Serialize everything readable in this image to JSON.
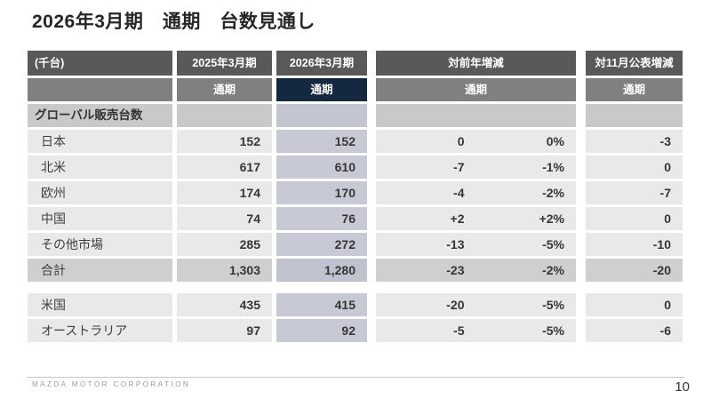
{
  "slide": {
    "title": "2026年3月期　通期　台数見通し",
    "footer": "MAZDA MOTOR CORPORATION",
    "page_number": "10"
  },
  "table": {
    "unit_label": "(千台)",
    "col_headers": [
      "2025年3月期",
      "2026年3月期",
      "対前年増減",
      "対11月公表増減"
    ],
    "subheader": "通期",
    "section_label": "グローバル販売台数",
    "rows": [
      {
        "label": "日本",
        "fy2025": "152",
        "fy2026": "152",
        "yoy": "0",
        "yoy_pct": "0%",
        "vs_nov": "-3"
      },
      {
        "label": "北米",
        "fy2025": "617",
        "fy2026": "610",
        "yoy": "-7",
        "yoy_pct": "-1%",
        "vs_nov": "0"
      },
      {
        "label": "欧州",
        "fy2025": "174",
        "fy2026": "170",
        "yoy": "-4",
        "yoy_pct": "-2%",
        "vs_nov": "-7"
      },
      {
        "label": "中国",
        "fy2025": "74",
        "fy2026": "76",
        "yoy": "+2",
        "yoy_pct": "+2%",
        "vs_nov": "0"
      },
      {
        "label": "その他市場",
        "fy2025": "285",
        "fy2026": "272",
        "yoy": "-13",
        "yoy_pct": "-5%",
        "vs_nov": "-10"
      }
    ],
    "total_row": {
      "label": "合計",
      "fy2025": "1,303",
      "fy2026": "1,280",
      "yoy": "-23",
      "yoy_pct": "-2%",
      "vs_nov": "-20"
    },
    "memo_rows": [
      {
        "label": "米国",
        "fy2025": "435",
        "fy2026": "415",
        "yoy": "-20",
        "yoy_pct": "-5%",
        "vs_nov": "0"
      },
      {
        "label": "オーストラリア",
        "fy2025": "97",
        "fy2026": "92",
        "yoy": "-5",
        "yoy_pct": "-5%",
        "vs_nov": "-6"
      }
    ],
    "colors": {
      "header_dark": "#595959",
      "header_mid": "#808080",
      "accent_navy": "#14283f",
      "row_bg": "#e9e9e9",
      "row_bg_fy2026": "#c7cad5",
      "section_bg": "#c9c9c9",
      "total_bg": "#cfcfcf"
    }
  }
}
